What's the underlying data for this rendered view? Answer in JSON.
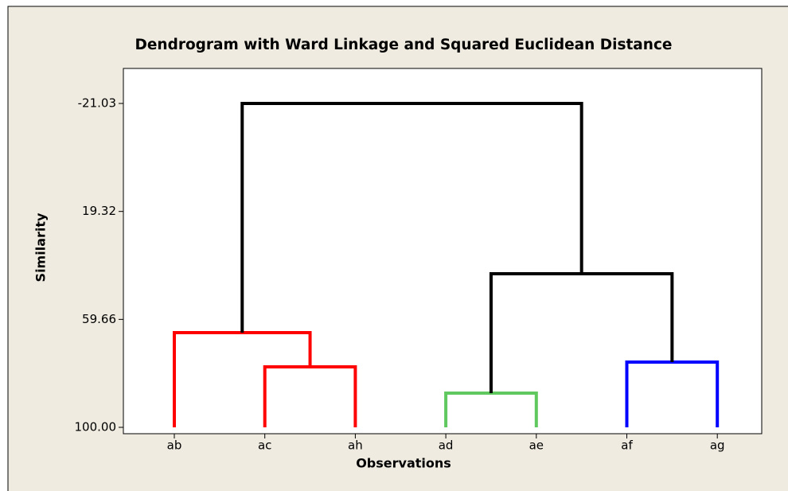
{
  "chart_data": {
    "type": "dendrogram",
    "title": "Dendrogram with Ward Linkage and Squared Euclidean Distance",
    "x_label": "Observations",
    "y_label": "Similarity",
    "categories": [
      "ab",
      "ac",
      "ah",
      "ad",
      "ae",
      "af",
      "ag"
    ],
    "merges": [
      {
        "children": [
          1,
          2
        ],
        "height": 77.4,
        "color": "#ff0000"
      },
      {
        "children": [
          0,
          7
        ],
        "height": 64.6,
        "color": "#ff0000"
      },
      {
        "children": [
          3,
          4
        ],
        "height": 87.2,
        "color": "#5fc95f"
      },
      {
        "children": [
          5,
          6
        ],
        "height": 75.6,
        "color": "#0000ff"
      },
      {
        "children": [
          9,
          10
        ],
        "height": 42.6,
        "color": "#000000"
      },
      {
        "children": [
          8,
          11
        ],
        "height": -21.03,
        "color": "#000000"
      }
    ],
    "ylim": [
      100,
      -21.03
    ],
    "yticks": [
      -21.03,
      19.32,
      59.66,
      {
        "value": 100,
        "label": "100.00"
      }
    ]
  }
}
